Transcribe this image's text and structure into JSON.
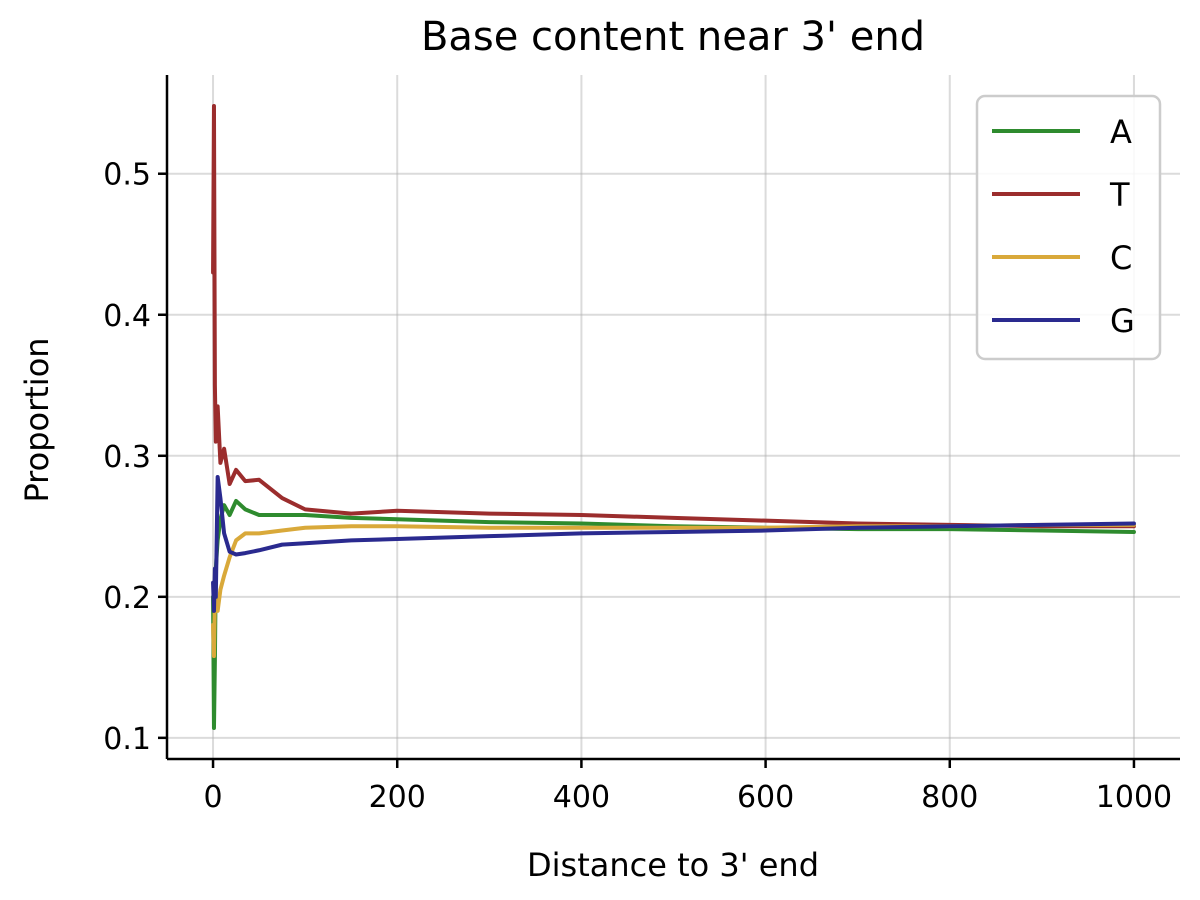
{
  "chart_data": {
    "type": "line",
    "title": "Base content near 3' end",
    "xlabel": "Distance to 3' end",
    "ylabel": "Proportion",
    "xlim": [
      -50,
      1050
    ],
    "ylim": [
      0.085,
      0.57
    ],
    "xticks": [
      0,
      200,
      400,
      600,
      800,
      1000
    ],
    "xtick_labels": [
      "0",
      "200",
      "400",
      "600",
      "800",
      "1000"
    ],
    "yticks": [
      0.1,
      0.2,
      0.3,
      0.4,
      0.5
    ],
    "ytick_labels": [
      "0.1",
      "0.2",
      "0.3",
      "0.4",
      "0.5"
    ],
    "grid": true,
    "legend_position": "top-right",
    "series": [
      {
        "name": "A",
        "color": "#2e8b2e",
        "x": [
          0,
          1,
          2,
          3,
          5,
          8,
          12,
          18,
          25,
          35,
          50,
          75,
          100,
          150,
          200,
          300,
          400,
          500,
          600,
          700,
          800,
          900,
          1000
        ],
        "values": [
          0.2,
          0.107,
          0.155,
          0.22,
          0.24,
          0.255,
          0.265,
          0.258,
          0.268,
          0.262,
          0.258,
          0.258,
          0.258,
          0.256,
          0.255,
          0.253,
          0.252,
          0.25,
          0.249,
          0.248,
          0.248,
          0.247,
          0.246
        ]
      },
      {
        "name": "T",
        "color": "#9b2d2d",
        "x": [
          0,
          1,
          2,
          3,
          5,
          8,
          12,
          18,
          25,
          35,
          50,
          75,
          100,
          150,
          200,
          300,
          400,
          500,
          600,
          700,
          800,
          900,
          1000
        ],
        "values": [
          0.43,
          0.548,
          0.35,
          0.31,
          0.335,
          0.295,
          0.305,
          0.28,
          0.29,
          0.282,
          0.283,
          0.27,
          0.262,
          0.259,
          0.261,
          0.259,
          0.258,
          0.256,
          0.254,
          0.252,
          0.251,
          0.25,
          0.25
        ]
      },
      {
        "name": "C",
        "color": "#d9a93a",
        "x": [
          0,
          1,
          2,
          3,
          5,
          8,
          12,
          18,
          25,
          35,
          50,
          75,
          100,
          150,
          200,
          300,
          400,
          500,
          600,
          700,
          800,
          900,
          1000
        ],
        "values": [
          0.18,
          0.158,
          0.2,
          0.19,
          0.19,
          0.205,
          0.215,
          0.228,
          0.24,
          0.245,
          0.245,
          0.247,
          0.249,
          0.25,
          0.25,
          0.249,
          0.249,
          0.249,
          0.249,
          0.25,
          0.25,
          0.251,
          0.251
        ]
      },
      {
        "name": "G",
        "color": "#2a2a8f",
        "x": [
          0,
          1,
          2,
          3,
          5,
          8,
          12,
          18,
          25,
          35,
          50,
          75,
          100,
          150,
          200,
          300,
          400,
          500,
          600,
          700,
          800,
          900,
          1000
        ],
        "values": [
          0.21,
          0.19,
          0.22,
          0.2,
          0.285,
          0.27,
          0.245,
          0.232,
          0.23,
          0.231,
          0.233,
          0.237,
          0.238,
          0.24,
          0.241,
          0.243,
          0.245,
          0.246,
          0.247,
          0.249,
          0.25,
          0.251,
          0.252
        ]
      }
    ]
  }
}
